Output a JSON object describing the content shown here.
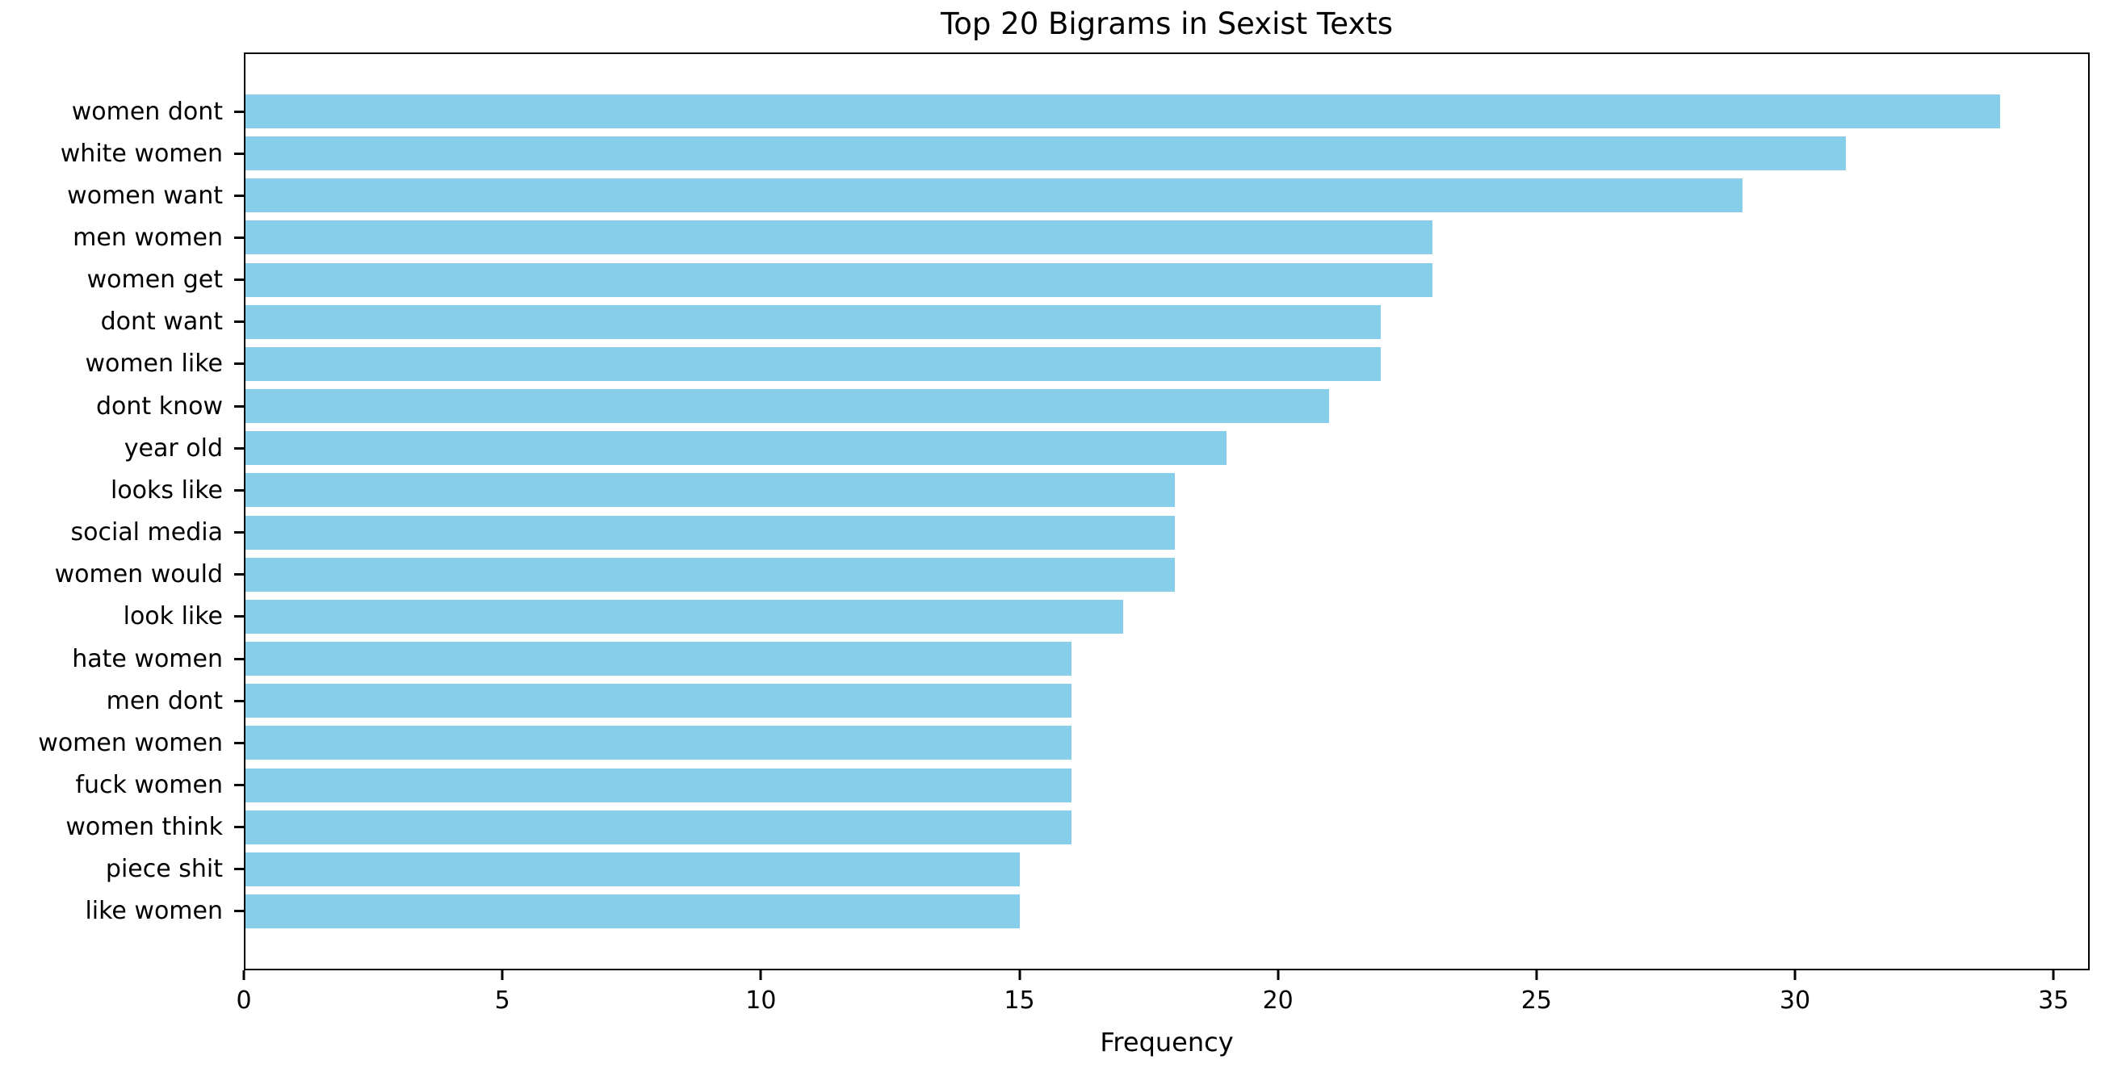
{
  "chart_data": {
    "type": "bar",
    "orientation": "horizontal",
    "title": "Top 20 Bigrams in Sexist Texts",
    "xlabel": "Frequency",
    "ylabel": "",
    "categories": [
      "women dont",
      "white women",
      "women want",
      "men women",
      "women get",
      "dont want",
      "women like",
      "dont know",
      "year old",
      "looks like",
      "social media",
      "women would",
      "look like",
      "hate women",
      "men dont",
      "women women",
      "fuck women",
      "women think",
      "piece shit",
      "like women"
    ],
    "values": [
      34,
      31,
      29,
      23,
      23,
      22,
      22,
      21,
      19,
      18,
      18,
      18,
      17,
      16,
      16,
      16,
      16,
      16,
      15,
      15
    ],
    "x_ticks": [
      0,
      5,
      10,
      15,
      20,
      25,
      30,
      35
    ],
    "xlim": [
      0,
      35.7
    ],
    "grid": false,
    "legend_position": "none",
    "bar_color": "#87CEEB",
    "axis_color": "#000000",
    "background_color": "#ffffff"
  }
}
